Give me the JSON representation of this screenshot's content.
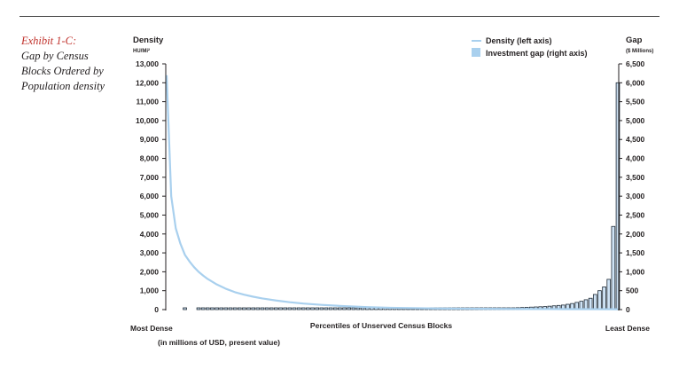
{
  "exhibit": {
    "label": "Exhibit 1-C:",
    "title_lines": [
      "Gap by Census",
      "Blocks Ordered by",
      "Population density"
    ]
  },
  "chart_data": {
    "type": "bar",
    "title": "Gap by Census Blocks Ordered by Population density",
    "xlabel": "Percentiles of Unserved Census Blocks",
    "x_left_label": "Most Dense",
    "x_right_label": "Least Dense",
    "x_note": "(in millions of USD, present value)",
    "left_axis": {
      "title": "Density",
      "unit": "HU/Mi²",
      "ylim": [
        0,
        13000
      ],
      "ticks": [
        "0",
        "1,000",
        "2,000",
        "3,000",
        "4,000",
        "5,000",
        "6,000",
        "7,000",
        "8,000",
        "9,000",
        "10,000",
        "11,000",
        "12,000",
        "13,000"
      ]
    },
    "right_axis": {
      "title": "Gap",
      "unit": "($ Millions)",
      "ylim": [
        0,
        6500
      ],
      "ticks": [
        "0",
        "500",
        "1,000",
        "1,500",
        "2,000",
        "2,500",
        "3,000",
        "3,500",
        "4,000",
        "4,500",
        "5,000",
        "5,500",
        "6,000",
        "6,500"
      ]
    },
    "legend": {
      "position": "top-right",
      "items": [
        {
          "label": "Density (left axis)",
          "kind": "line",
          "color": "#a9d0ee"
        },
        {
          "label": "Investment gap (right axis)",
          "kind": "bar",
          "color": "#a9d0ee"
        }
      ]
    },
    "colors": {
      "density_line": "#a9d0ee",
      "bar_fill": "#cfe3f5",
      "bar_edge": "#1e2a36"
    },
    "grid": false,
    "series": [
      {
        "name": "Density (left axis)",
        "axis": "left",
        "kind": "line",
        "x": [
          1,
          2,
          3,
          4,
          5,
          6,
          7,
          8,
          9,
          10,
          12,
          14,
          16,
          18,
          20,
          22,
          25,
          28,
          31,
          35,
          40,
          45,
          50,
          55,
          60,
          65,
          70,
          75,
          80,
          85,
          90,
          95,
          100
        ],
        "values": [
          12400,
          6000,
          4300,
          3500,
          2900,
          2550,
          2250,
          2000,
          1800,
          1620,
          1330,
          1100,
          920,
          790,
          680,
          590,
          480,
          390,
          320,
          250,
          180,
          130,
          95,
          75,
          60,
          50,
          42,
          35,
          30,
          26,
          22,
          20,
          18
        ]
      },
      {
        "name": "Investment gap (right axis)",
        "axis": "right",
        "kind": "bar",
        "x": [
          1,
          2,
          3,
          4,
          5,
          6,
          7,
          8,
          9,
          10,
          11,
          12,
          13,
          14,
          15,
          16,
          17,
          18,
          19,
          20,
          21,
          22,
          23,
          24,
          25,
          26,
          27,
          28,
          29,
          30,
          31,
          32,
          33,
          34,
          35,
          36,
          37,
          38,
          39,
          40,
          41,
          42,
          43,
          44,
          45,
          46,
          47,
          48,
          49,
          50,
          51,
          52,
          53,
          54,
          55,
          56,
          57,
          58,
          59,
          60,
          61,
          62,
          63,
          64,
          65,
          66,
          67,
          68,
          69,
          70,
          71,
          72,
          73,
          74,
          75,
          76,
          77,
          78,
          79,
          80,
          81,
          82,
          83,
          84,
          85,
          86,
          87,
          88,
          89,
          90,
          91,
          92,
          93,
          94,
          95,
          96,
          97,
          98,
          99,
          100
        ],
        "values": [
          0,
          0,
          0,
          0,
          5,
          0,
          0,
          5,
          5,
          5,
          5,
          5,
          5,
          5,
          5,
          5,
          5,
          5,
          5,
          5,
          10,
          10,
          10,
          10,
          10,
          10,
          10,
          10,
          10,
          10,
          10,
          10,
          10,
          10,
          10,
          10,
          10,
          10,
          10,
          10,
          10,
          10,
          10,
          10,
          10,
          10,
          10,
          10,
          10,
          10,
          10,
          10,
          10,
          10,
          10,
          15,
          15,
          15,
          15,
          15,
          15,
          20,
          20,
          20,
          20,
          20,
          25,
          25,
          25,
          30,
          30,
          30,
          35,
          35,
          35,
          40,
          45,
          50,
          55,
          60,
          65,
          70,
          75,
          80,
          90,
          100,
          110,
          120,
          140,
          160,
          190,
          220,
          260,
          300,
          400,
          500,
          600,
          800,
          2200,
          6000
        ]
      }
    ]
  }
}
